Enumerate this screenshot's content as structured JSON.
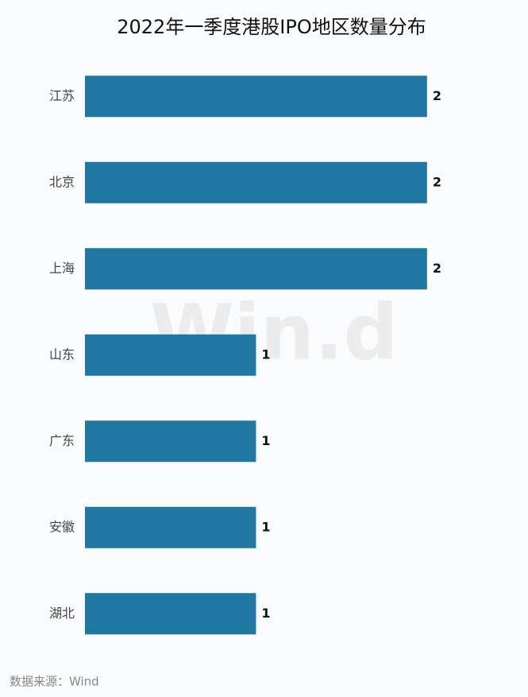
{
  "chart_data": {
    "type": "hbar",
    "title": "2022年一季度港股IPO地区数量分布",
    "categories": [
      "江苏",
      "北京",
      "上海",
      "山东",
      "广东",
      "安徽",
      "湖北"
    ],
    "values": [
      2,
      2,
      2,
      1,
      1,
      1,
      1
    ],
    "color": "#1f78a1",
    "xlim": [
      0,
      2.4
    ],
    "watermark": "Win.d",
    "source": "数据来源：Wind"
  }
}
